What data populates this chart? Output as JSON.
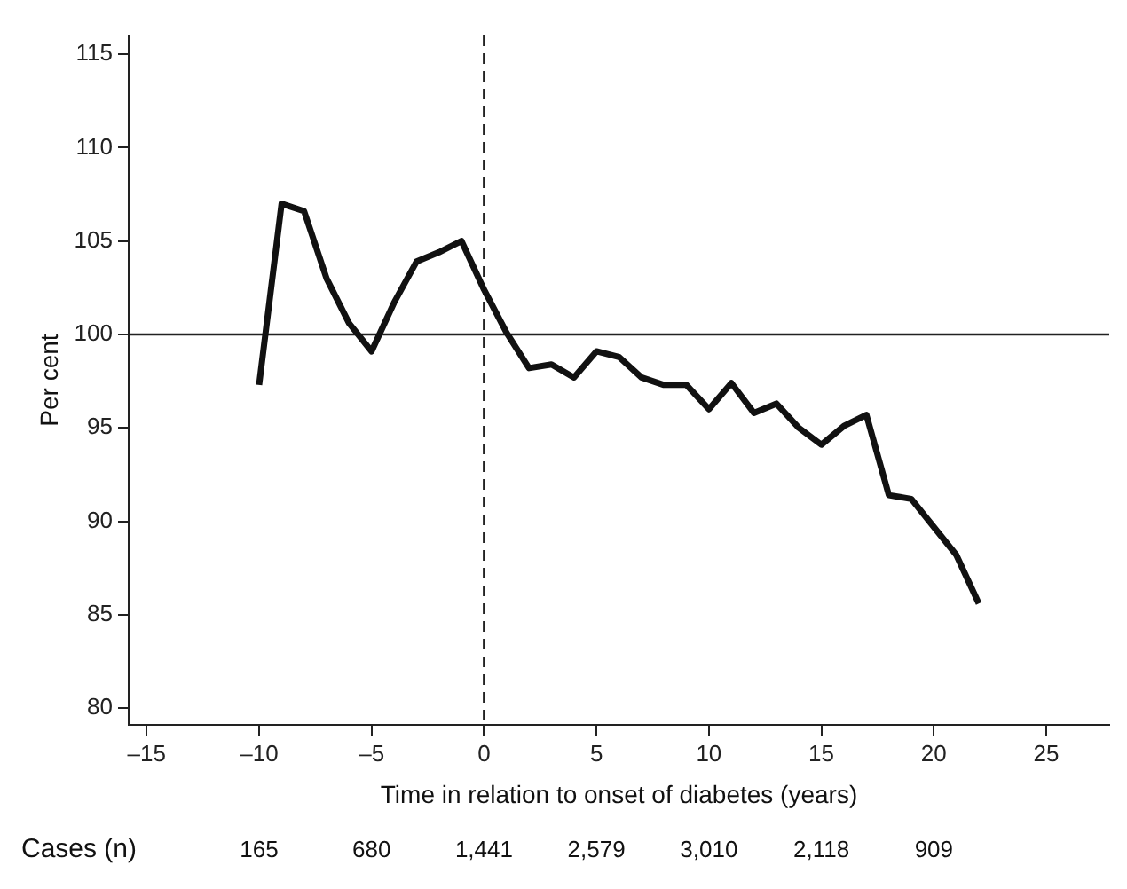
{
  "chart_data": {
    "type": "line",
    "xlabel": "Time in relation to onset of diabetes (years)",
    "ylabel": "Per cent",
    "x": [
      -10,
      -9,
      -8,
      -7,
      -6,
      -5,
      -4,
      -3,
      -2,
      -1,
      0,
      1,
      2,
      3,
      4,
      5,
      6,
      7,
      8,
      9,
      10,
      11,
      12,
      13,
      14,
      15,
      16,
      17,
      18,
      19,
      20,
      21,
      22
    ],
    "series": [
      {
        "color": "#111111",
        "values": [
          97.3,
          107,
          106.6,
          103,
          100.6,
          99.1,
          101.7,
          103.9,
          104.4,
          105,
          102.4,
          100.1,
          98.2,
          98.4,
          97.7,
          99.1,
          98.8,
          97.7,
          97.3,
          97.3,
          96,
          97.4,
          95.8,
          96.3,
          95,
          94.1,
          95.1,
          95.7,
          91.4,
          91.2,
          89.7,
          88.2,
          85.6
        ]
      }
    ],
    "xlim": [
      -15.8,
      27.8
    ],
    "xticks": [
      {
        "value": -15,
        "label": "–15"
      },
      {
        "value": -10,
        "label": "–10"
      },
      {
        "value": -5,
        "label": "–5"
      },
      0,
      5,
      10,
      15,
      20,
      25
    ],
    "ylim": [
      79.1,
      116
    ],
    "yticks": [
      80,
      85,
      90,
      95,
      100,
      105,
      110,
      115
    ],
    "ref_lines": [
      {
        "axis": "y",
        "value": 100,
        "color": "#222222",
        "line_style": "solid"
      },
      {
        "axis": "x",
        "value": 0,
        "color": "#222222",
        "line_style": "dashed"
      }
    ],
    "annotations": [
      "Cases (n)",
      "165",
      "680",
      "1,441",
      "2,579",
      "3,010",
      "2,118",
      "909"
    ],
    "grid": false,
    "legend": false,
    "marker": "none",
    "line_style": "solid"
  }
}
